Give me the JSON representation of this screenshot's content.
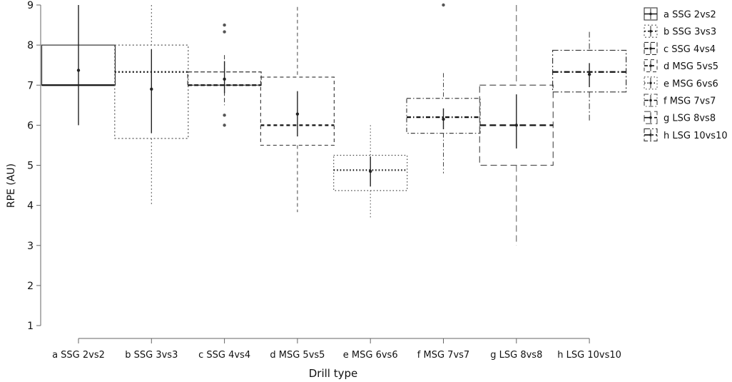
{
  "chart_data": {
    "type": "box",
    "xlabel": "Drill type",
    "ylabel": "RPE (AU)",
    "ylim": [
      1,
      9
    ],
    "yticks": [
      1,
      2,
      3,
      4,
      5,
      6,
      7,
      8,
      9
    ],
    "grid": false,
    "legend_position": "right",
    "categories": [
      "a SSG 2vs2",
      "b SSG 3vs3",
      "c SSG 4vs4",
      "d MSG 5vs5",
      "e MSG 6vs6",
      "f MSG 7vs7",
      "g LSG 8vs8",
      "h LSG 10vs10"
    ],
    "series": [
      {
        "name": "a SSG 2vs2",
        "whisker_low": 7.0,
        "q1": 7.0,
        "median": 7.0,
        "q3": 8.0,
        "whisker_high": 8.0,
        "mean": 7.37,
        "ci_low": 6.0,
        "ci_high": 9.0,
        "outliers": [],
        "dash": "",
        "stroke": "#333333"
      },
      {
        "name": "b SSG 3vs3",
        "whisker_low": 4.0,
        "q1": 5.67,
        "median": 7.33,
        "q3": 8.0,
        "whisker_high": 9.0,
        "mean": 6.9,
        "ci_low": 5.8,
        "ci_high": 7.9,
        "outliers": [],
        "dash": "2,3",
        "stroke": "#555555"
      },
      {
        "name": "c SSG 4vs4",
        "whisker_low": 6.5,
        "q1": 7.0,
        "median": 7.0,
        "q3": 7.33,
        "whisker_high": 7.75,
        "mean": 7.15,
        "ci_low": 6.8,
        "ci_high": 7.6,
        "outliers": [
          6.0,
          6.25,
          8.33,
          8.5
        ],
        "dash": "6,3",
        "stroke": "#333333"
      },
      {
        "name": "d MSG 5vs5",
        "whisker_low": 3.83,
        "q1": 5.5,
        "median": 6.0,
        "q3": 7.2,
        "whisker_high": 8.95,
        "mean": 6.28,
        "ci_low": 5.72,
        "ci_high": 6.85,
        "outliers": [],
        "dash": "5,4",
        "stroke": "#444444"
      },
      {
        "name": "e MSG 6vs6",
        "whisker_low": 3.7,
        "q1": 4.37,
        "median": 4.88,
        "q3": 5.25,
        "whisker_high": 6.0,
        "mean": 4.85,
        "ci_low": 4.47,
        "ci_high": 5.22,
        "outliers": [],
        "dash": "1.5,3",
        "stroke": "#444444"
      },
      {
        "name": "f MSG 7vs7",
        "whisker_low": 4.8,
        "q1": 5.8,
        "median": 6.2,
        "q3": 6.67,
        "whisker_high": 7.3,
        "mean": 6.15,
        "ci_low": 5.9,
        "ci_high": 6.42,
        "outliers": [
          9.0
        ],
        "dash": "6,3,1.5,3",
        "stroke": "#444444"
      },
      {
        "name": "g LSG 8vs8",
        "whisker_low": 3.0,
        "q1": 5.0,
        "median": 6.0,
        "q3": 7.0,
        "whisker_high": 9.0,
        "mean": 6.0,
        "ci_low": 5.42,
        "ci_high": 6.77,
        "outliers": [],
        "dash": "9,5",
        "stroke": "#555555"
      },
      {
        "name": "h LSG 10vs10",
        "whisker_low": 6.1,
        "q1": 6.83,
        "median": 7.33,
        "q3": 7.87,
        "whisker_high": 8.33,
        "mean": 7.27,
        "ci_low": 6.95,
        "ci_high": 7.55,
        "outliers": [],
        "dash": "8,3,2,3",
        "stroke": "#333333"
      }
    ]
  }
}
